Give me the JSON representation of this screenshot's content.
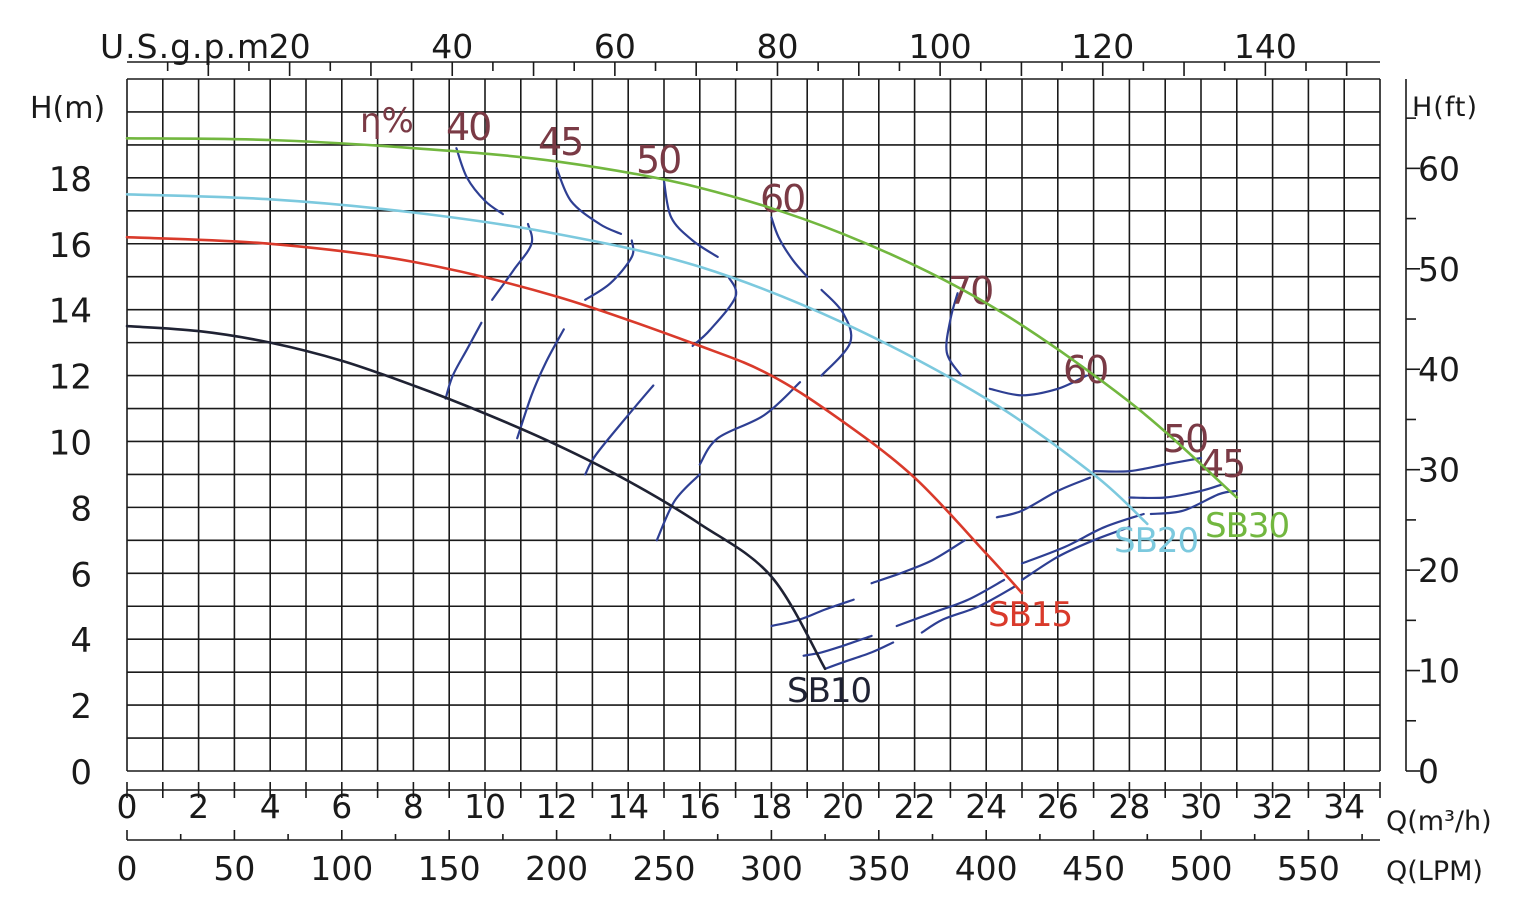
{
  "chart_data": {
    "type": "line",
    "axes": {
      "flow_m3h": {
        "label": "Q(m³/h)",
        "range": [
          0,
          35
        ],
        "ticks": [
          0,
          2,
          4,
          6,
          8,
          10,
          12,
          14,
          16,
          18,
          20,
          22,
          24,
          26,
          28,
          30,
          32,
          34
        ]
      },
      "flow_lpm": {
        "label": "Q(LPM)",
        "range": [
          0,
          583.3
        ],
        "ticks": [
          0,
          50,
          100,
          150,
          200,
          250,
          300,
          350,
          400,
          450,
          500,
          550
        ]
      },
      "flow_usgpm": {
        "label": "U.S.g.p.m",
        "range": [
          0,
          154.1
        ],
        "ticks": [
          20,
          40,
          60,
          80,
          100,
          120,
          140
        ]
      },
      "head_m": {
        "label": "H(m)",
        "range": [
          0,
          21
        ],
        "ticks": [
          0,
          2,
          4,
          6,
          8,
          10,
          12,
          14,
          16,
          18
        ]
      },
      "head_ft": {
        "label": "H(ft)",
        "range": [
          0,
          68.9
        ],
        "ticks": [
          0,
          10,
          20,
          30,
          40,
          50,
          60
        ]
      }
    },
    "grid": true,
    "efficiency_label": "η%",
    "series": [
      {
        "name": "SB10",
        "color": "#1f2233",
        "points": [
          [
            0,
            13.5
          ],
          [
            2,
            13.35
          ],
          [
            4,
            13.0
          ],
          [
            6,
            12.45
          ],
          [
            8,
            11.7
          ],
          [
            10,
            10.85
          ],
          [
            12,
            9.9
          ],
          [
            14,
            8.8
          ],
          [
            16,
            7.5
          ],
          [
            18,
            5.9
          ],
          [
            19.5,
            3.1
          ]
        ]
      },
      {
        "name": "SB15",
        "color": "#d93a2b",
        "points": [
          [
            0,
            16.2
          ],
          [
            4,
            16.0
          ],
          [
            8,
            15.45
          ],
          [
            12,
            14.4
          ],
          [
            16,
            12.9
          ],
          [
            18,
            12.0
          ],
          [
            20,
            10.6
          ],
          [
            22,
            8.9
          ],
          [
            24,
            6.6
          ],
          [
            25,
            5.4
          ]
        ]
      },
      {
        "name": "SB20",
        "color": "#7cc9de",
        "points": [
          [
            0,
            17.5
          ],
          [
            4,
            17.35
          ],
          [
            8,
            16.95
          ],
          [
            12,
            16.3
          ],
          [
            16,
            15.3
          ],
          [
            20,
            13.6
          ],
          [
            24,
            11.3
          ],
          [
            27,
            9.0
          ],
          [
            28.5,
            7.5
          ]
        ]
      },
      {
        "name": "SB30",
        "color": "#72b73f",
        "points": [
          [
            0,
            19.2
          ],
          [
            4,
            19.15
          ],
          [
            8,
            18.9
          ],
          [
            12,
            18.5
          ],
          [
            16,
            17.7
          ],
          [
            20,
            16.3
          ],
          [
            24,
            14.2
          ],
          [
            28,
            11.2
          ],
          [
            31,
            8.3
          ]
        ]
      }
    ],
    "efficiency_contours": [
      {
        "label": "40",
        "segments": [
          [
            [
              9.2,
              18.9
            ],
            [
              9.5,
              18.0
            ],
            [
              10.0,
              17.3
            ],
            [
              10.5,
              16.9
            ]
          ],
          [
            [
              11.2,
              16.6
            ],
            [
              11.3,
              16.0
            ],
            [
              10.8,
              15.2
            ],
            [
              10.2,
              14.3
            ]
          ],
          [
            [
              9.9,
              13.6
            ],
            [
              9.5,
              12.8
            ],
            [
              9.1,
              12.0
            ],
            [
              8.9,
              11.3
            ]
          ]
        ]
      },
      {
        "label": "45",
        "segments": [
          [
            [
              12.0,
              18.3
            ],
            [
              12.4,
              17.3
            ],
            [
              13.2,
              16.6
            ],
            [
              13.8,
              16.3
            ]
          ],
          [
            [
              14.1,
              16.1
            ],
            [
              14.1,
              15.6
            ],
            [
              13.5,
              14.8
            ],
            [
              12.8,
              14.3
            ]
          ],
          [
            [
              12.2,
              13.4
            ],
            [
              11.7,
              12.4
            ],
            [
              11.3,
              11.4
            ],
            [
              10.9,
              10.1
            ]
          ]
        ]
      },
      {
        "label": "50",
        "segments": [
          [
            [
              15.0,
              17.9
            ],
            [
              15.2,
              16.8
            ],
            [
              15.8,
              16.1
            ],
            [
              16.5,
              15.6
            ]
          ],
          [
            [
              16.8,
              15.0
            ],
            [
              17.0,
              14.4
            ],
            [
              16.3,
              13.4
            ],
            [
              15.8,
              12.9
            ]
          ],
          [
            [
              14.7,
              11.7
            ],
            [
              14.0,
              10.8
            ],
            [
              13.1,
              9.6
            ],
            [
              12.8,
              9.0
            ]
          ]
        ]
      },
      {
        "label": "60",
        "segments": [
          [
            [
              18.0,
              16.8
            ],
            [
              18.2,
              16.2
            ],
            [
              18.6,
              15.5
            ],
            [
              19.0,
              15.0
            ]
          ],
          [
            [
              19.4,
              14.6
            ],
            [
              20.0,
              13.9
            ],
            [
              20.2,
              13.0
            ],
            [
              19.4,
              12.0
            ]
          ],
          [
            [
              18.8,
              11.8
            ],
            [
              17.8,
              10.8
            ],
            [
              16.5,
              10.1
            ],
            [
              16.0,
              9.3
            ]
          ],
          [
            [
              16.0,
              9.0
            ],
            [
              15.3,
              8.2
            ],
            [
              14.8,
              7.0
            ]
          ]
        ]
      },
      {
        "label": "70",
        "segments": [
          [
            [
              23.2,
              14.5
            ],
            [
              23.0,
              13.7
            ],
            [
              22.9,
              12.7
            ],
            [
              23.3,
              12.0
            ]
          ],
          [
            [
              24.1,
              11.6
            ],
            [
              25.0,
              11.4
            ],
            [
              26.0,
              11.6
            ],
            [
              26.8,
              12.0
            ]
          ]
        ]
      },
      {
        "label": "60",
        "segments": [
          [
            [
              27.0,
              9.1
            ],
            [
              28.0,
              9.1
            ],
            [
              29.0,
              9.3
            ],
            [
              30.0,
              9.5
            ]
          ],
          [
            [
              26.9,
              8.9
            ],
            [
              26.0,
              8.5
            ],
            [
              25.0,
              7.9
            ],
            [
              24.3,
              7.7
            ]
          ],
          [
            [
              23.4,
              7.0
            ],
            [
              22.5,
              6.4
            ],
            [
              21.6,
              6.0
            ],
            [
              20.8,
              5.7
            ]
          ],
          [
            [
              20.3,
              5.2
            ],
            [
              19.5,
              4.9
            ],
            [
              18.8,
              4.6
            ],
            [
              18.0,
              4.4
            ]
          ]
        ]
      },
      {
        "label": "50",
        "segments": [
          [
            [
              28.0,
              8.3
            ],
            [
              29.0,
              8.3
            ],
            [
              30.0,
              8.5
            ],
            [
              30.6,
              8.7
            ]
          ],
          [
            [
              28.4,
              7.8
            ],
            [
              27.3,
              7.4
            ],
            [
              26.2,
              6.8
            ],
            [
              25.0,
              6.3
            ]
          ],
          [
            [
              24.5,
              5.8
            ],
            [
              23.5,
              5.2
            ],
            [
              22.5,
              4.8
            ],
            [
              21.5,
              4.4
            ]
          ],
          [
            [
              20.8,
              4.1
            ],
            [
              20.0,
              3.8
            ],
            [
              19.4,
              3.6
            ],
            [
              18.9,
              3.5
            ]
          ]
        ]
      },
      {
        "label": "45",
        "segments": [
          [
            [
              28.6,
              7.8
            ],
            [
              29.5,
              7.9
            ],
            [
              30.5,
              8.4
            ],
            [
              31.0,
              8.5
            ]
          ],
          [
            [
              28.0,
              7.4
            ],
            [
              27.0,
              7.0
            ],
            [
              26.0,
              6.5
            ],
            [
              25.0,
              5.8
            ]
          ],
          [
            [
              24.8,
              5.6
            ],
            [
              23.8,
              5.0
            ],
            [
              22.8,
              4.6
            ],
            [
              22.2,
              4.2
            ]
          ],
          [
            [
              21.4,
              3.9
            ],
            [
              20.8,
              3.6
            ],
            [
              20.0,
              3.3
            ],
            [
              19.5,
              3.1
            ]
          ]
        ]
      }
    ]
  },
  "labels": {
    "usgpm_label": "U.S.g.p.m",
    "head_m_label": "H(m)",
    "head_ft_label": "H(ft)",
    "q_m3h_label": "Q(m³/h)",
    "q_lpm_label": "Q(LPM)",
    "eta_label": "η%"
  },
  "colors": {
    "grid": "#1a1a1a",
    "efficiency_line": "#2e3f93",
    "efficiency_label": "#7a3a45",
    "axis_text": "#1a1a1a"
  }
}
